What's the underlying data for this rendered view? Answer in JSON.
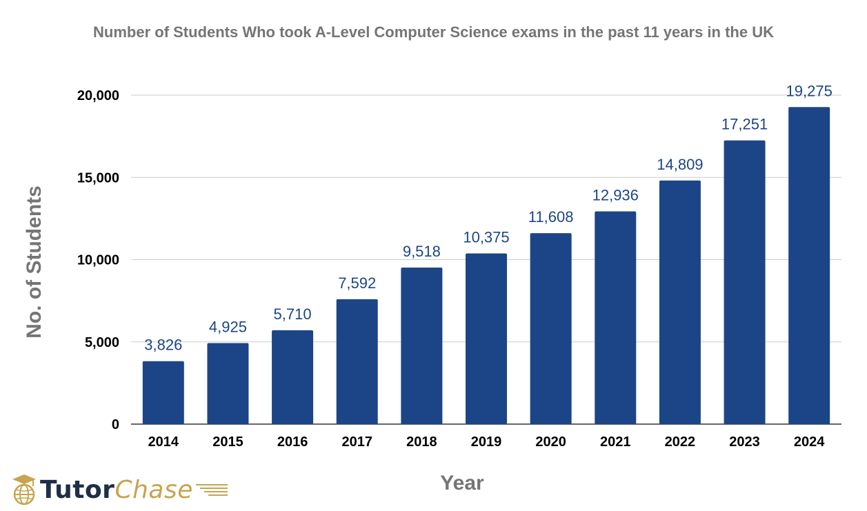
{
  "chart_data": {
    "type": "bar",
    "title": "Number of Students Who took A-Level Computer Science exams in the past 11 years in the UK",
    "xlabel": "Year",
    "ylabel": "No. of Students",
    "categories": [
      "2014",
      "2015",
      "2016",
      "2017",
      "2018",
      "2019",
      "2020",
      "2021",
      "2022",
      "2023",
      "2024"
    ],
    "values": [
      3826,
      4925,
      5710,
      7592,
      9518,
      10375,
      11608,
      12936,
      14809,
      17251,
      19275
    ],
    "data_labels": [
      "3,826",
      "4,925",
      "5,710",
      "7,592",
      "9,518",
      "10,375",
      "11,608",
      "12,936",
      "14,809",
      "17,251",
      "19,275"
    ],
    "yticks": [
      0,
      5000,
      10000,
      15000,
      20000
    ],
    "ytick_labels": [
      "0",
      "5,000",
      "10,000",
      "15,000",
      "20,000"
    ],
    "ylim": [
      0,
      20000
    ],
    "grid": true,
    "legend": "none",
    "colors": {
      "bar": "#1c4587",
      "data_label": "#1c4587",
      "grid": "#cccccc",
      "axis_title": "#757575",
      "tick_label": "#000000"
    }
  },
  "logo": {
    "text_left": "Tutor",
    "text_right": "Chase",
    "icon": "globe-graduation-cap-icon"
  }
}
